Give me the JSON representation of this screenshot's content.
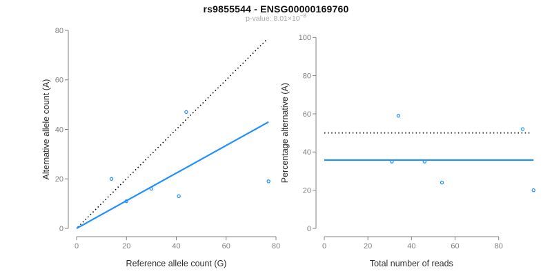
{
  "header": {
    "title": "rs9855544 - ENSG00000169760",
    "pvalue_text": "p-value: 8.01×10",
    "pvalue_exponent": "−8"
  },
  "colors": {
    "points": "#1E90FF",
    "fit_line": "#1E90FF",
    "reference_line": "#000000",
    "axis": "#808080",
    "tick_label": "#808080",
    "axis_title": "#2e2e2e",
    "title": "#111111",
    "subtitle": "#a6a6a6"
  },
  "chart_data": [
    {
      "type": "scatter",
      "title": "rs9855544 - ENSG00000169760",
      "subtitle": "p-value: 8.01×10−8",
      "xlabel": "Reference allele count (G)",
      "ylabel": "Alternative allele count (A)",
      "xlim": [
        0,
        80
      ],
      "ylim": [
        0,
        80
      ],
      "xticks": [
        0,
        20,
        40,
        60,
        80
      ],
      "yticks": [
        0,
        20,
        40,
        60,
        80
      ],
      "grid": false,
      "legend": null,
      "points": [
        [
          14,
          20
        ],
        [
          20,
          11
        ],
        [
          30,
          16
        ],
        [
          41,
          13
        ],
        [
          44,
          47
        ],
        [
          77,
          19
        ]
      ],
      "lines": [
        {
          "name": "identity-line",
          "role": "reference",
          "style": "dotted",
          "x1": 0.5,
          "y1": 0.5,
          "x2": 76.5,
          "y2": 76.5
        },
        {
          "name": "fit-line",
          "role": "fit",
          "style": "solid",
          "x1": 0,
          "y1": 0,
          "x2": 77,
          "y2": 43
        }
      ]
    },
    {
      "type": "scatter",
      "xlabel": "Total number of reads",
      "ylabel": "Percentage alternative (A)",
      "xlim": [
        0,
        96
      ],
      "ylim": [
        0,
        100
      ],
      "xticks": [
        0,
        20,
        40,
        60,
        80
      ],
      "yticks": [
        0,
        20,
        40,
        60,
        80,
        100
      ],
      "grid": false,
      "legend": null,
      "points": [
        [
          34,
          59
        ],
        [
          31,
          35
        ],
        [
          46,
          35
        ],
        [
          54,
          24
        ],
        [
          91,
          52
        ],
        [
          96,
          20
        ]
      ],
      "lines": [
        {
          "name": "expected-50pct-line",
          "role": "reference",
          "style": "dotted",
          "x1": 0,
          "y1": 50,
          "x2": 94.5,
          "y2": 50
        },
        {
          "name": "mean-percentage-line",
          "role": "fit",
          "style": "solid",
          "x1": 0,
          "y1": 35.8,
          "x2": 96,
          "y2": 35.8
        }
      ]
    }
  ]
}
